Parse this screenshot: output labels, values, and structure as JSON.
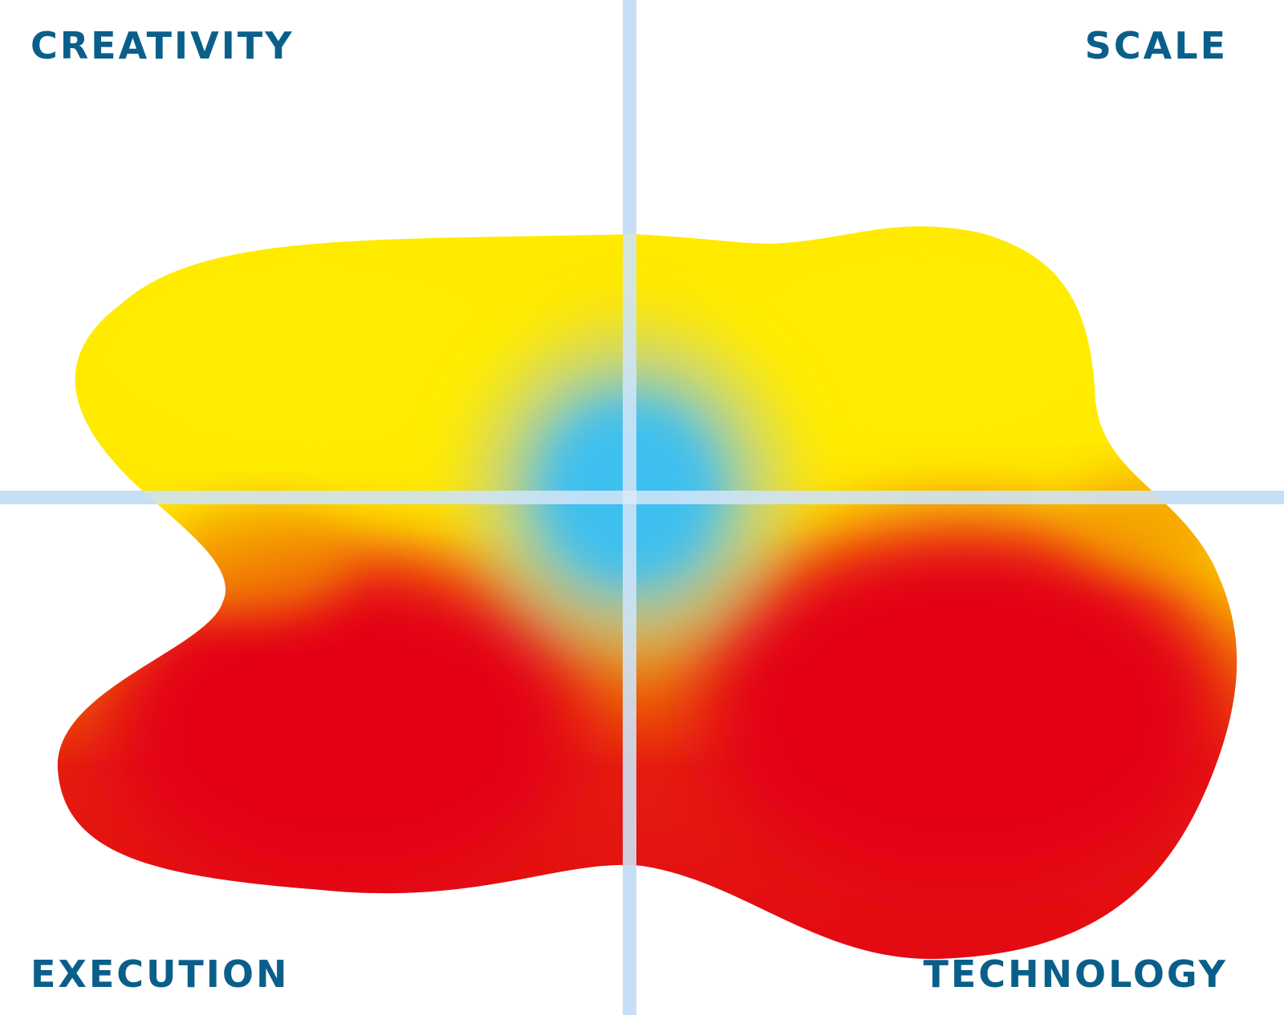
{
  "labels": {
    "top_left": "CREATIVITY",
    "top_right": "SCALE",
    "bottom_left": "EXECUTION",
    "bottom_right": "TECHNOLOGY"
  },
  "colors": {
    "label_text": "#0a5f8a",
    "axis_line": "#bcd9f4",
    "blob_yellow": "#ffe900",
    "blob_orange": "#f08a00",
    "blob_red": "#e30613",
    "center_blue": "#3ec0f0"
  }
}
